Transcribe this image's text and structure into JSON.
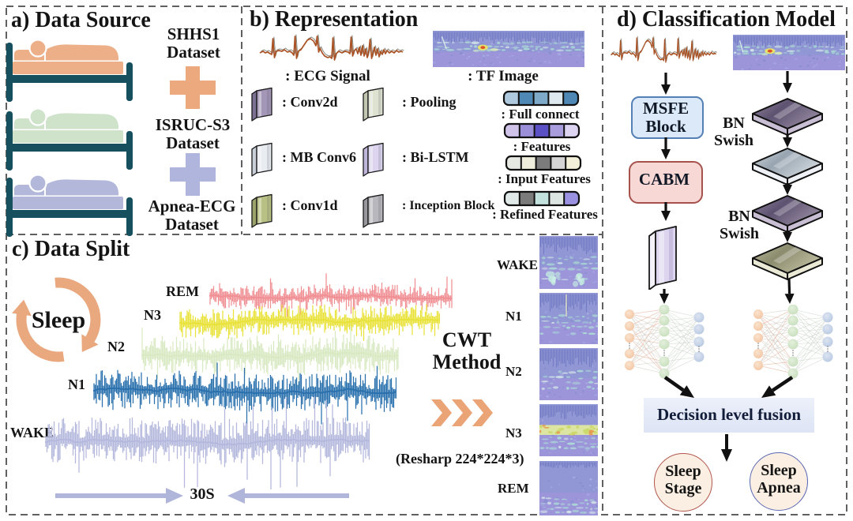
{
  "panels": {
    "a": {
      "title": "a) Data Source",
      "datasets": [
        {
          "name_l1": "SHHS1",
          "name_l2": "Dataset",
          "person_color": "#edaf88"
        },
        {
          "name_l1": "ISRUC-S3",
          "name_l2": "Dataset",
          "person_color": "#cfe3cb"
        },
        {
          "name_l1": "Apnea-ECG",
          "name_l2": "Dataset",
          "person_color": "#b3b8db"
        }
      ],
      "plus_colors": [
        "#eda97e",
        "#b0b5de"
      ],
      "bed_frame_color": "#16505f"
    },
    "b": {
      "title": "b) Representation",
      "ecg_label": ": ECG Signal",
      "tf_label": ": TF  Image",
      "legend": [
        {
          "label": ": Conv2d",
          "face": "#a396b6",
          "edge": "#7c7093",
          "top": "#d8d1e2"
        },
        {
          "label": ": MB Conv6",
          "face": "#e9ecf1",
          "edge": "#c9cfd9",
          "top": "#f6f8fb"
        },
        {
          "label": ": Conv1d",
          "face": "#b9c083",
          "edge": "#9ba26a",
          "top": "#d4d9a6"
        },
        {
          "label": ": Pooling",
          "face": "#dde2d1",
          "edge": "#c1c8b2",
          "top": "#eff2e9"
        },
        {
          "label": ": Bi-LSTM",
          "face": "#ddd5f0",
          "edge": "#c0b5da",
          "top": "#f0ebfa"
        },
        {
          "label": ": Inception Block",
          "face": "#b7b7bd",
          "edge": "#97979d",
          "top": "#dbdbe0"
        }
      ],
      "bars": [
        {
          "label": ": Full connect",
          "cells": [
            "#aec9dd",
            "#4f87b5",
            "#7fa9c9",
            "#dde9ef",
            "#4f87b5"
          ]
        },
        {
          "label": ": Features",
          "cells": [
            "#cfc3ea",
            "#9b8fd9",
            "#5b50c4",
            "#a99dde",
            "#ddd4f2"
          ]
        },
        {
          "label": ": Input Features",
          "cells": [
            "#e6e9e2",
            "#efeedd",
            "#7b7b7b",
            "#d4d4d4",
            "#f2f0d8"
          ]
        },
        {
          "label": ": Refined Features",
          "cells": [
            "#e0e9e7",
            "#7b7b7b",
            "#c3e1dd",
            "#dde5e3",
            "#9a92e0"
          ]
        }
      ]
    },
    "c": {
      "title": "c) Data Split",
      "cycle_label": "Sleep",
      "cycle_color": "#e9a87e",
      "stages": [
        {
          "label": "WAKE",
          "color": "#b4b8dc"
        },
        {
          "label": "N1",
          "color": "#2970ad"
        },
        {
          "label": "N2",
          "color": "#d9e9c2"
        },
        {
          "label": "N3",
          "color": "#e8e23a"
        },
        {
          "label": "REM",
          "color": "#f08f94"
        }
      ],
      "cwt_l1": "CWT",
      "cwt_l2": "Method",
      "resharp": "(Resharp 224*224*3)",
      "duration": "30S",
      "duration_arrow_color": "#b0b5da",
      "chevron_color": "#eba475",
      "spect_labels": [
        "WAKE",
        "N1",
        "N2",
        "N3",
        "REM"
      ]
    },
    "d": {
      "title": "d) Classification Model",
      "msfe_l1": "MSFE",
      "msfe_l2": "Block",
      "cabm": "CABM",
      "bn1_l1": "BN",
      "bn1_l2": "Swish",
      "bn2_l1": "BN",
      "bn2_l2": "Swish",
      "fusion": "Decision level fusion",
      "flat_slabs": [
        {
          "c1": "#93879f",
          "c2": "#5d5270",
          "strip": "#c9bfd4"
        },
        {
          "c1": "#cfd6db",
          "c2": "#98a5b1",
          "strip": "#eef2f6"
        },
        {
          "c1": "#93879f",
          "c2": "#5d5270",
          "strip": "#c9bfd4"
        },
        {
          "c1": "#bcbb9e",
          "c2": "#8b8b6e",
          "strip": "#e9e9d6"
        }
      ],
      "vslab": {
        "face": "#ddd5f0",
        "edge": "#c0b5da",
        "top": "#f0ebfa"
      },
      "outputs": [
        {
          "l1": "Sleep",
          "l2": "Stage",
          "border": "#b2564e",
          "fill": "#faefe2"
        },
        {
          "l1": "Sleep",
          "l2": "Apnea",
          "border": "#5c68b5",
          "fill": "#faefe2"
        }
      ]
    }
  }
}
